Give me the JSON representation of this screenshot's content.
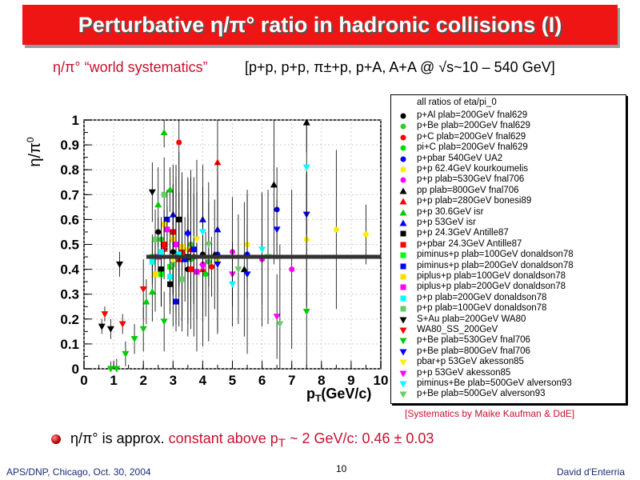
{
  "slide": {
    "title": "Perturbative η/π° ratio in hadronic collisions (I)",
    "subtitle_left": "η/π° “world systematics”",
    "subtitle_right": "[p+p, p+p, π±+p, p+A, A+A @ √s~10 – 540 GeV]",
    "credit": "[Systematics by Maike Kaufman & DdE]",
    "bullet_a": "η/π° is approx. ",
    "bullet_b": "constant above p",
    "bullet_sub": "T",
    "bullet_c": " ~ 2 GeV/c:  0.46 ± 0.03",
    "footer_left": "APS/DNP, Chicago, Oct. 30, 2004",
    "page_number": "10",
    "footer_right": "David d'Enterria"
  },
  "colors": {
    "title_bg": "#ef1515",
    "accent_red": "#c8102e",
    "fit_line": "#333333"
  },
  "chart_data": {
    "type": "scatter",
    "title": "",
    "xlabel": "p",
    "xlabel_sub": "T",
    "xlabel_unit": "(GeV/c)",
    "ylabel": "η/π",
    "ylabel_sup": "0",
    "xlim": [
      0,
      10
    ],
    "ylim": [
      0,
      1
    ],
    "xticks": [
      "0",
      "1",
      "2",
      "3",
      "4",
      "5",
      "6",
      "7",
      "8",
      "9",
      "10"
    ],
    "yticks": [
      "0",
      "0.1",
      "0.2",
      "0.3",
      "0.4",
      "0.5",
      "0.6",
      "0.7",
      "0.8",
      "0.9",
      "1"
    ],
    "grid": true,
    "legend_position": "right",
    "legend_header": "all ratios of eta/pi_0",
    "fit": {
      "value": 0.45,
      "x_range": [
        2.1,
        10
      ]
    },
    "series": [
      {
        "name": "p+Al plab=200GeV fnal629",
        "marker": "circle",
        "color": "#000000",
        "points": [
          [
            2.5,
            0.55
          ],
          [
            3.0,
            0.47
          ],
          [
            3.5,
            0.4
          ],
          [
            4.0,
            0.46
          ]
        ]
      },
      {
        "name": "p+Be plab=200GeV fnal629",
        "marker": "circle",
        "color": "#33cc33",
        "points": [
          [
            2.6,
            0.52
          ],
          [
            3.1,
            0.45
          ],
          [
            3.6,
            0.5
          ],
          [
            4.2,
            0.43
          ]
        ]
      },
      {
        "name": "p+C plab=200GeV fnal629",
        "marker": "circle",
        "color": "#ff0000",
        "points": [
          [
            2.7,
            0.48
          ],
          [
            3.2,
            0.91
          ],
          [
            3.7,
            0.45
          ],
          [
            4.3,
            0.41
          ]
        ]
      },
      {
        "name": "pi+C plab=200GeV fnal629",
        "marker": "circle",
        "color": "#00dd00",
        "points": [
          [
            2.6,
            0.4
          ],
          [
            3.1,
            0.5
          ],
          [
            3.6,
            0.44
          ],
          [
            4.1,
            0.38
          ]
        ]
      },
      {
        "name": "p+pbar 540GeV UA2",
        "marker": "circle",
        "color": "#0000ff",
        "points": [
          [
            4.5,
            0.46
          ],
          [
            5.5,
            0.46
          ],
          [
            6.5,
            0.64
          ]
        ]
      },
      {
        "name": "p+p 62.4GeV kourkoumelis",
        "marker": "circle",
        "color": "#ffee00",
        "points": [
          [
            3.5,
            0.48
          ],
          [
            4.5,
            0.44
          ],
          [
            5.5,
            0.5
          ],
          [
            7.5,
            0.52
          ],
          [
            8.5,
            0.56
          ],
          [
            9.5,
            0.54
          ]
        ]
      },
      {
        "name": "p+p plab=530GeV fnal706",
        "marker": "circle",
        "color": "#ff00ff",
        "points": [
          [
            4.0,
            0.42
          ],
          [
            5.0,
            0.47
          ],
          [
            6.0,
            0.44
          ],
          [
            7.0,
            0.4
          ]
        ]
      },
      {
        "name": "pp plab=800GeV fnal706",
        "marker": "triangle-up",
        "color": "#000000",
        "points": [
          [
            4.4,
            0.46
          ],
          [
            5.4,
            0.4
          ],
          [
            6.4,
            0.74
          ],
          [
            7.5,
            0.99
          ]
        ]
      },
      {
        "name": "p+p plab=280GeV bonesi89",
        "marker": "triangle-up",
        "color": "#ff0000",
        "points": [
          [
            3.2,
            0.44
          ],
          [
            3.6,
            0.48
          ],
          [
            4.0,
            0.4
          ],
          [
            4.5,
            0.83
          ]
        ]
      },
      {
        "name": "p+p 30.6GeV isr",
        "marker": "triangle-up",
        "color": "#00cc00",
        "points": [
          [
            2.1,
            0.27
          ],
          [
            2.3,
            0.31
          ],
          [
            2.5,
            0.66
          ],
          [
            2.7,
            0.95
          ],
          [
            2.9,
            0.72
          ]
        ]
      },
      {
        "name": "p+p 53GeV isr",
        "marker": "triangle-up",
        "color": "#0000ff",
        "points": [
          [
            3.0,
            0.62
          ],
          [
            3.5,
            0.55
          ],
          [
            4.0,
            0.6
          ],
          [
            4.5,
            0.56
          ]
        ]
      },
      {
        "name": "p+p 24.3GeV Antille87",
        "marker": "square",
        "color": "#000000",
        "points": [
          [
            2.6,
            0.4
          ],
          [
            2.9,
            0.34
          ],
          [
            3.2,
            0.6
          ],
          [
            3.5,
            0.45
          ]
        ]
      },
      {
        "name": "p+pbar 24.3GeV Antille87",
        "marker": "square",
        "color": "#ff0000",
        "points": [
          [
            2.7,
            0.5
          ],
          [
            3.0,
            0.55
          ],
          [
            3.3,
            0.47
          ],
          [
            3.6,
            0.4
          ]
        ]
      },
      {
        "name": "piminus+p plab=100GeV donaldson78",
        "marker": "square",
        "color": "#00ff00",
        "points": [
          [
            2.3,
            0.45
          ],
          [
            2.6,
            0.38
          ],
          [
            2.9,
            0.41
          ],
          [
            3.2,
            0.46
          ]
        ]
      },
      {
        "name": "piminus+p plab=200GeV donaldson78",
        "marker": "square",
        "color": "#0000ff",
        "points": [
          [
            2.8,
            0.6
          ],
          [
            3.1,
            0.27
          ],
          [
            3.4,
            0.44
          ],
          [
            3.7,
            0.48
          ]
        ]
      },
      {
        "name": "piplus+p plab=100GeV donaldson78",
        "marker": "square",
        "color": "#ffdd00",
        "points": [
          [
            2.4,
            0.38
          ],
          [
            2.7,
            0.58
          ],
          [
            3.0,
            0.52
          ],
          [
            3.3,
            0.49
          ]
        ]
      },
      {
        "name": "piplus+p plab=200GeV donaldson78",
        "marker": "square",
        "color": "#ff00ff",
        "points": [
          [
            2.5,
            0.45
          ],
          [
            2.8,
            0.56
          ],
          [
            3.1,
            0.5
          ],
          [
            3.8,
            0.39
          ]
        ]
      },
      {
        "name": "p+p plab=200GeV donaldson78",
        "marker": "square",
        "color": "#00ffff",
        "points": [
          [
            2.3,
            0.43
          ],
          [
            2.6,
            0.47
          ],
          [
            2.9,
            0.37
          ],
          [
            3.2,
            0.46
          ]
        ]
      },
      {
        "name": "p+p plab=100GeV donaldson78",
        "marker": "square",
        "color": "#66cc66",
        "points": [
          [
            2.4,
            0.52
          ],
          [
            2.7,
            0.7
          ],
          [
            3.0,
            0.42
          ],
          [
            3.3,
            0.36
          ]
        ]
      },
      {
        "name": "S+Au plab=200GeV WA80",
        "marker": "triangle-down",
        "color": "#000000",
        "points": [
          [
            0.6,
            0.17
          ],
          [
            0.9,
            0.16
          ],
          [
            1.2,
            0.42
          ],
          [
            2.3,
            0.71
          ]
        ]
      },
      {
        "name": "WA80_SS_200GeV",
        "marker": "triangle-down",
        "color": "#ff0000",
        "points": [
          [
            0.7,
            0.22
          ],
          [
            1.3,
            0.18
          ],
          [
            2.0,
            0.32
          ]
        ]
      },
      {
        "name": "p+Be plab=530GeV fnal706",
        "marker": "triangle-down",
        "color": "#00cc00",
        "points": [
          [
            0.9,
            0.0
          ],
          [
            1.1,
            0.0
          ],
          [
            1.4,
            0.06
          ],
          [
            1.7,
            0.12
          ],
          [
            2.0,
            0.16
          ],
          [
            2.7,
            0.19
          ],
          [
            7.5,
            0.23
          ]
        ]
      },
      {
        "name": "p+Be plab=800GeV fnal706",
        "marker": "triangle-down",
        "color": "#0000ff",
        "points": [
          [
            3.5,
            0.54
          ],
          [
            4.5,
            0.42
          ],
          [
            5.5,
            0.38
          ],
          [
            6.5,
            0.56
          ],
          [
            7.5,
            0.62
          ]
        ]
      },
      {
        "name": "pbar+p 53GeV akesson85",
        "marker": "triangle-down",
        "color": "#ffee00",
        "points": [
          [
            3.0,
            0.44
          ],
          [
            3.8,
            0.52
          ]
        ]
      },
      {
        "name": "p+p 53GeV akesson85",
        "marker": "triangle-down",
        "color": "#ff00ff",
        "points": [
          [
            4.0,
            0.41
          ],
          [
            5.0,
            0.38
          ],
          [
            6.5,
            0.21
          ]
        ]
      },
      {
        "name": "piminus+Be plab=500GeV alverson93",
        "marker": "triangle-down",
        "color": "#00ffff",
        "points": [
          [
            4.0,
            0.55
          ],
          [
            5.0,
            0.34
          ],
          [
            6.0,
            0.48
          ],
          [
            7.5,
            0.81
          ]
        ]
      },
      {
        "name": "p+Be plab=500GeV alverson93",
        "marker": "triangle-down",
        "color": "#66cc66",
        "points": [
          [
            4.2,
            0.5
          ],
          [
            5.2,
            0.4
          ],
          [
            6.2,
            0.45
          ],
          [
            6.6,
            0.18
          ]
        ]
      }
    ]
  }
}
